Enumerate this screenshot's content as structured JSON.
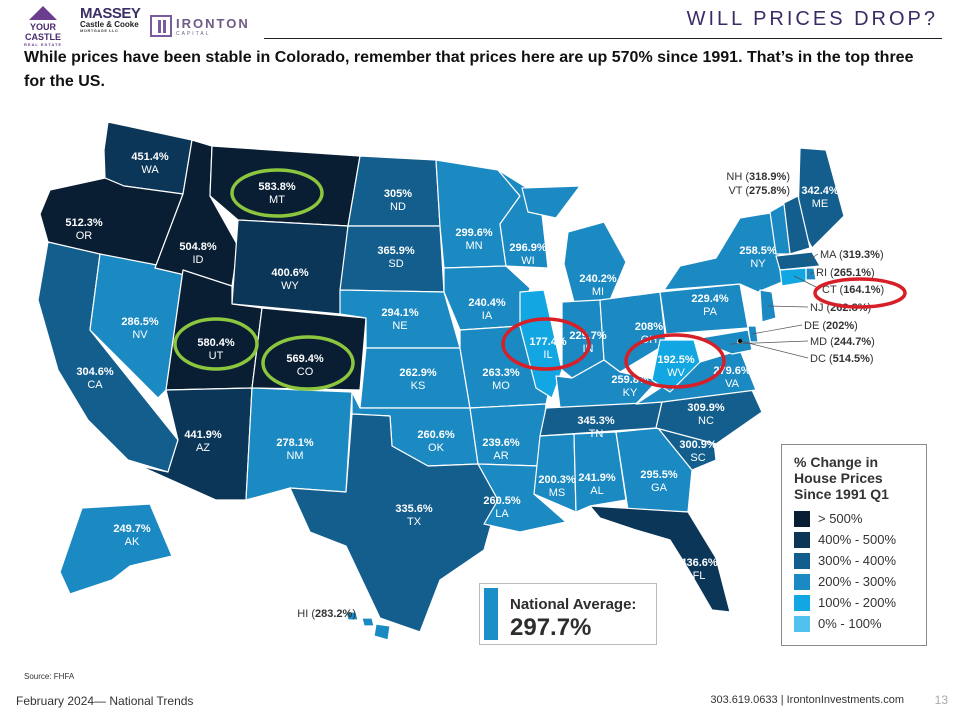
{
  "header": {
    "logos": [
      {
        "name": "your-castle",
        "main": "YOUR CASTLE",
        "sub": "REAL ESTATE"
      },
      {
        "name": "massey",
        "main": "MASSEY",
        "sub": "Castle & Cooke",
        "sub2": "MORTGAGE LLC"
      },
      {
        "name": "ironton",
        "main": "IRONTON",
        "sub": "CAPITAL"
      }
    ],
    "title": "WILL PRICES DROP?"
  },
  "headline": "While prices have been stable in Colorado,  remember that prices here are up 570% since 1991.  That’s in the top three for the US.",
  "colors": {
    "over_500": "#091e33",
    "r400_500": "#0b3658",
    "r300_400": "#135e8d",
    "r200_300": "#1b89c2",
    "r100_200": "#12a6e2",
    "r0_100": "#52c1ee",
    "highlight_green": "#8cc63f",
    "highlight_red": "#d61f26"
  },
  "map": {
    "states": [
      {
        "abbr": "WA",
        "value": "451.4%",
        "band": "r400_500"
      },
      {
        "abbr": "OR",
        "value": "512.3%",
        "band": "over_500"
      },
      {
        "abbr": "CA",
        "value": "304.6%",
        "band": "r300_400"
      },
      {
        "abbr": "NV",
        "value": "286.5%",
        "band": "r200_300"
      },
      {
        "abbr": "ID",
        "value": "504.8%",
        "band": "over_500"
      },
      {
        "abbr": "MT",
        "value": "583.8%",
        "band": "over_500"
      },
      {
        "abbr": "WY",
        "value": "400.6%",
        "band": "r400_500"
      },
      {
        "abbr": "UT",
        "value": "580.4%",
        "band": "over_500"
      },
      {
        "abbr": "CO",
        "value": "569.4%",
        "band": "over_500"
      },
      {
        "abbr": "AZ",
        "value": "441.9%",
        "band": "r400_500"
      },
      {
        "abbr": "NM",
        "value": "278.1%",
        "band": "r200_300"
      },
      {
        "abbr": "ND",
        "value": "305%",
        "band": "r300_400"
      },
      {
        "abbr": "SD",
        "value": "365.9%",
        "band": "r300_400"
      },
      {
        "abbr": "NE",
        "value": "294.1%",
        "band": "r200_300"
      },
      {
        "abbr": "KS",
        "value": "262.9%",
        "band": "r200_300"
      },
      {
        "abbr": "OK",
        "value": "260.6%",
        "band": "r200_300"
      },
      {
        "abbr": "TX",
        "value": "335.6%",
        "band": "r300_400"
      },
      {
        "abbr": "MN",
        "value": "299.6%",
        "band": "r200_300"
      },
      {
        "abbr": "IA",
        "value": "240.4%",
        "band": "r200_300"
      },
      {
        "abbr": "MO",
        "value": "263.3%",
        "band": "r200_300"
      },
      {
        "abbr": "AR",
        "value": "239.6%",
        "band": "r200_300"
      },
      {
        "abbr": "LA",
        "value": "260.5%",
        "band": "r200_300"
      },
      {
        "abbr": "WI",
        "value": "296.9%",
        "band": "r200_300"
      },
      {
        "abbr": "IL",
        "value": "177.4%",
        "band": "r100_200"
      },
      {
        "abbr": "MI",
        "value": "240.2%",
        "band": "r200_300"
      },
      {
        "abbr": "IN",
        "value": "229.7%",
        "band": "r200_300"
      },
      {
        "abbr": "OH",
        "value": "208%",
        "band": "r200_300"
      },
      {
        "abbr": "KY",
        "value": "259.8%",
        "band": "r200_300"
      },
      {
        "abbr": "TN",
        "value": "345.3%",
        "band": "r300_400"
      },
      {
        "abbr": "MS",
        "value": "200.3%",
        "band": "r200_300"
      },
      {
        "abbr": "AL",
        "value": "241.9%",
        "band": "r200_300"
      },
      {
        "abbr": "GA",
        "value": "295.5%",
        "band": "r200_300"
      },
      {
        "abbr": "FL",
        "value": "436.6%",
        "band": "r400_500"
      },
      {
        "abbr": "SC",
        "value": "300.9%",
        "band": "r300_400"
      },
      {
        "abbr": "NC",
        "value": "309.9%",
        "band": "r300_400"
      },
      {
        "abbr": "VA",
        "value": "279.6%",
        "band": "r200_300"
      },
      {
        "abbr": "WV",
        "value": "192.5%",
        "band": "r100_200"
      },
      {
        "abbr": "PA",
        "value": "229.4%",
        "band": "r200_300"
      },
      {
        "abbr": "NY",
        "value": "258.5%",
        "band": "r200_300"
      },
      {
        "abbr": "ME",
        "value": "342.4%",
        "band": "r300_400"
      },
      {
        "abbr": "NH",
        "value": "318.9%",
        "band": "r300_400"
      },
      {
        "abbr": "VT",
        "value": "275.8%",
        "band": "r200_300"
      },
      {
        "abbr": "MA",
        "value": "319.3%",
        "band": "r300_400"
      },
      {
        "abbr": "RI",
        "value": "265.1%",
        "band": "r200_300"
      },
      {
        "abbr": "CT",
        "value": "164.1%",
        "band": "r100_200"
      },
      {
        "abbr": "NJ",
        "value": "262.8%",
        "band": "r200_300"
      },
      {
        "abbr": "DE",
        "value": "202%",
        "band": "r200_300"
      },
      {
        "abbr": "MD",
        "value": "244.7%",
        "band": "r200_300"
      },
      {
        "abbr": "DC",
        "value": "514.5%",
        "band": "over_500"
      },
      {
        "abbr": "AK",
        "value": "249.7%",
        "band": "r200_300"
      },
      {
        "abbr": "HI",
        "value": "283.2%",
        "band": "r200_300"
      }
    ],
    "green_circled": [
      "MT",
      "UT",
      "CO"
    ],
    "red_circled": [
      "IL",
      "WV",
      "CT"
    ]
  },
  "legend": {
    "title_lines": [
      "% Change in",
      "House Prices",
      "Since 1991 Q1"
    ],
    "items": [
      {
        "label": "> 500%",
        "band": "over_500"
      },
      {
        "label": "400% - 500%",
        "band": "r400_500"
      },
      {
        "label": "300% - 400%",
        "band": "r300_400"
      },
      {
        "label": "200% - 300%",
        "band": "r200_300"
      },
      {
        "label": "100% - 200%",
        "band": "r100_200"
      },
      {
        "label": "0% - 100%",
        "band": "r0_100"
      }
    ]
  },
  "national_average": {
    "label": "National Average:",
    "value": "297.7%"
  },
  "source": "Source: FHFA",
  "footer": {
    "left": "February 2024— National Trends",
    "right": "303.619.0633 | IrontonInvestments.com",
    "page": "13"
  }
}
